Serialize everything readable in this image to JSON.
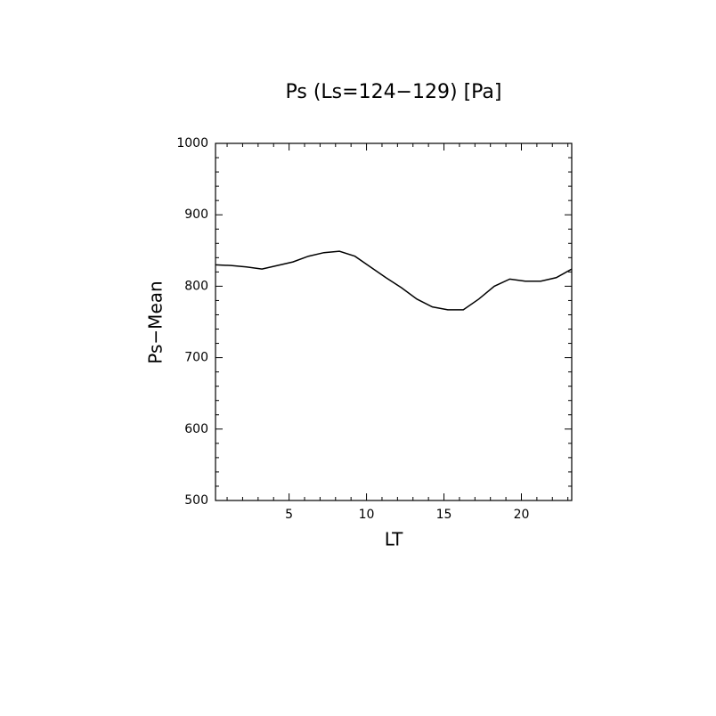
{
  "chart_data": {
    "type": "line",
    "title": "Ps (Ls=124−129) [Pa]",
    "xlabel": "LT",
    "ylabel": "Ps−Mean",
    "x": [
      0.25,
      1.25,
      2.25,
      3.25,
      4.25,
      5.25,
      6.25,
      7.25,
      8.25,
      9.25,
      10.25,
      11.25,
      12.25,
      13.25,
      14.25,
      15.25,
      16.25,
      17.25,
      18.25,
      19.25,
      20.25,
      21.25,
      22.25,
      23.25
    ],
    "series": [
      {
        "color": "#000000",
        "values": [
          830,
          829,
          827,
          824,
          829,
          834,
          842,
          847,
          849,
          842,
          827,
          812,
          798,
          782,
          771,
          767,
          767,
          782,
          800,
          810,
          807,
          807,
          812,
          824
        ]
      }
    ],
    "xlim": [
      0.25,
      23.25
    ],
    "xticks": [
      5,
      10,
      15,
      20
    ],
    "xminorticks": [
      1,
      2,
      3,
      4,
      6,
      7,
      8,
      9,
      11,
      12,
      13,
      14,
      16,
      17,
      18,
      19,
      21,
      22,
      23
    ],
    "ylim": [
      500,
      1000
    ],
    "yticks": [
      500,
      600,
      700,
      800,
      900,
      1000
    ],
    "yminorticks": [
      520,
      540,
      560,
      580,
      620,
      640,
      660,
      680,
      720,
      740,
      760,
      780,
      820,
      840,
      860,
      880,
      920,
      940,
      960,
      980
    ]
  }
}
